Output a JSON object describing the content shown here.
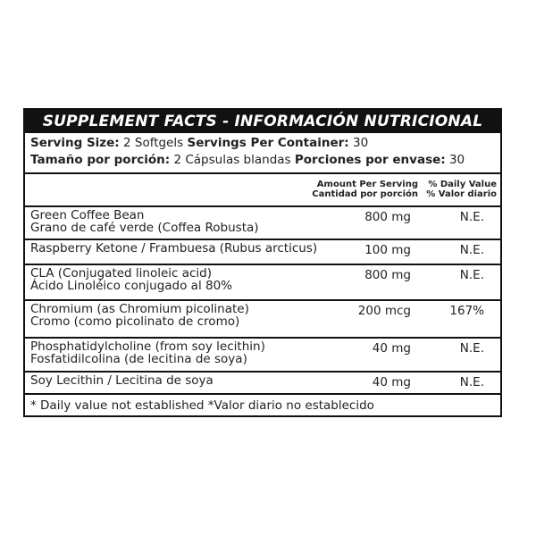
{
  "title": "SUPPLEMENT FACTS - INFORMACIÓN NUTRICIONAL",
  "serving": {
    "en": {
      "size_label": "Serving Size:",
      "size_value": "2 Softgels",
      "per_label": "Servings Per Container:",
      "per_value": "30"
    },
    "es": {
      "size_label": "Tamaño por porción:",
      "size_value": "2 Cápsulas blandas",
      "per_label": "Porciones por envase:",
      "per_value": "30"
    }
  },
  "columns": {
    "amount_en": "Amount Per Serving",
    "amount_es": "Cantidad por porción",
    "dv_en": "% Daily Value",
    "dv_es": "% Valor diario"
  },
  "rows": [
    {
      "name_en": "Green Coffee Bean",
      "name_es": "Grano de café verde (Coffea Robusta)",
      "amount": "800 mg",
      "dv": "N.E."
    },
    {
      "name_en": "Raspberry Ketone / Frambuesa (Rubus arcticus)",
      "name_es": "",
      "amount": "100 mg",
      "dv": "N.E."
    },
    {
      "name_en": "CLA (Conjugated linoleic acid)",
      "name_es": "Ácido Linoléico conjugado al 80%",
      "amount": "800 mg",
      "dv": "N.E."
    },
    {
      "name_en": "Chromium (as Chromium picolinate)",
      "name_es": "Cromo (como picolinato de cromo)",
      "amount": "200 mcg",
      "dv": "167%"
    },
    {
      "name_en": "Phosphatidylcholine (from soy lecithin)",
      "name_es": "Fosfatidilcolina (de lecitina de soya)",
      "amount": "40 mg",
      "dv": "N.E."
    },
    {
      "name_en": "Soy Lecithin / Lecitina de soya",
      "name_es": "",
      "amount": "40 mg",
      "dv": "N.E."
    }
  ],
  "footnote": "* Daily value not established  *Valor diario no establecido"
}
